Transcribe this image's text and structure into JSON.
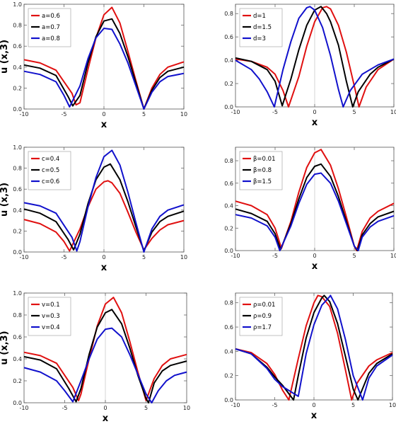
{
  "chart_data": [
    {
      "type": "line",
      "xlabel": "x",
      "ylabel": "u (x,3)",
      "xlim": [
        -10,
        10
      ],
      "ylim": [
        0,
        1.0
      ],
      "xticks": [
        "-10",
        "-5",
        "0",
        "5",
        "10"
      ],
      "yticks": [
        "0.0",
        "0.2",
        "0.4",
        "0.6",
        "0.8",
        "1.0"
      ],
      "legend_position": "top-left",
      "series": [
        {
          "name": "a=0.6",
          "color": "#e01010",
          "x": [
            -10,
            -8,
            -6,
            -4,
            -3.5,
            -3,
            -2,
            -1,
            0,
            1,
            2,
            3,
            4,
            5,
            6,
            7,
            8,
            10
          ],
          "y": [
            0.47,
            0.44,
            0.37,
            0.15,
            0.04,
            0.06,
            0.38,
            0.68,
            0.9,
            0.97,
            0.82,
            0.55,
            0.27,
            0.0,
            0.2,
            0.33,
            0.4,
            0.45
          ]
        },
        {
          "name": "a=0.7",
          "color": "#000000",
          "x": [
            -10,
            -8,
            -6,
            -4.5,
            -3.9,
            -3,
            -2,
            -1,
            0,
            1,
            2,
            3,
            4,
            5,
            6,
            7,
            8,
            10
          ],
          "y": [
            0.42,
            0.39,
            0.32,
            0.12,
            0.03,
            0.13,
            0.44,
            0.69,
            0.84,
            0.86,
            0.72,
            0.5,
            0.25,
            0.0,
            0.18,
            0.3,
            0.36,
            0.4
          ]
        },
        {
          "name": "a=0.8",
          "color": "#1111cc",
          "x": [
            -10,
            -8,
            -6,
            -5,
            -4.3,
            -3,
            -2,
            -1,
            0,
            1,
            2,
            3,
            4,
            5,
            6,
            7,
            8,
            10
          ],
          "y": [
            0.36,
            0.33,
            0.26,
            0.13,
            0.02,
            0.22,
            0.48,
            0.68,
            0.77,
            0.76,
            0.62,
            0.44,
            0.22,
            0.0,
            0.16,
            0.26,
            0.31,
            0.34
          ]
        }
      ]
    },
    {
      "type": "line",
      "xlabel": "x",
      "ylabel": "",
      "xlim": [
        -10,
        10
      ],
      "ylim": [
        0,
        0.88
      ],
      "xticks": [
        "-10",
        "-5",
        "0",
        "5",
        "10"
      ],
      "yticks": [
        "0.0",
        "0.2",
        "0.4",
        "0.6",
        "0.8"
      ],
      "legend_position": "top-left",
      "series": [
        {
          "name": "d=1",
          "color": "#e01010",
          "x": [
            -10,
            -8,
            -6,
            -5,
            -4,
            -3.3,
            -2,
            -1,
            0,
            1,
            1.5,
            2,
            3,
            4,
            5,
            5.6,
            6.5,
            8,
            10
          ],
          "y": [
            0.41,
            0.39,
            0.34,
            0.28,
            0.14,
            0.0,
            0.26,
            0.52,
            0.73,
            0.85,
            0.86,
            0.84,
            0.7,
            0.47,
            0.18,
            0.0,
            0.17,
            0.32,
            0.41
          ]
        },
        {
          "name": "d=1.5",
          "color": "#000000",
          "x": [
            -10,
            -8,
            -6,
            -5,
            -4.1,
            -3,
            -2,
            -1,
            0,
            0.8,
            1.5,
            2,
            3,
            4,
            4.8,
            5.5,
            7,
            8,
            10
          ],
          "y": [
            0.42,
            0.39,
            0.32,
            0.22,
            0.01,
            0.24,
            0.49,
            0.7,
            0.83,
            0.86,
            0.8,
            0.73,
            0.53,
            0.22,
            0.0,
            0.13,
            0.28,
            0.34,
            0.41
          ]
        },
        {
          "name": "d=3",
          "color": "#1111cc",
          "x": [
            -10,
            -8,
            -7,
            -6,
            -5.1,
            -4,
            -3,
            -2,
            -1,
            -0.6,
            0,
            1,
            2,
            3,
            3.6,
            4.5,
            6,
            8,
            10
          ],
          "y": [
            0.4,
            0.32,
            0.24,
            0.13,
            0.0,
            0.32,
            0.56,
            0.76,
            0.85,
            0.86,
            0.83,
            0.68,
            0.44,
            0.15,
            0.0,
            0.14,
            0.28,
            0.36,
            0.41
          ]
        }
      ]
    },
    {
      "type": "line",
      "xlabel": "x",
      "ylabel": "u (x,3)",
      "xlim": [
        -10,
        10
      ],
      "ylim": [
        0,
        1.0
      ],
      "xticks": [
        "-10",
        "-5",
        "0",
        "5",
        "10"
      ],
      "yticks": [
        "0.0",
        "0.2",
        "0.4",
        "0.6",
        "0.8",
        "1.0"
      ],
      "legend_position": "top-left",
      "series": [
        {
          "name": "c=0.4",
          "color": "#e01010",
          "x": [
            -10,
            -8,
            -6,
            -5,
            -4.3,
            -3,
            -2,
            -1,
            0,
            0.5,
            1,
            2,
            3,
            4,
            5,
            6,
            7,
            8,
            10
          ],
          "y": [
            0.31,
            0.27,
            0.19,
            0.1,
            0.01,
            0.22,
            0.43,
            0.6,
            0.67,
            0.68,
            0.66,
            0.56,
            0.38,
            0.19,
            0.02,
            0.13,
            0.21,
            0.26,
            0.3
          ]
        },
        {
          "name": "c=0.5",
          "color": "#000000",
          "x": [
            -10,
            -8,
            -6,
            -4.5,
            -3.8,
            -3,
            -2,
            -1,
            0,
            0.8,
            2,
            3,
            4,
            5,
            6,
            7,
            8,
            10
          ],
          "y": [
            0.41,
            0.37,
            0.29,
            0.12,
            0.02,
            0.17,
            0.46,
            0.69,
            0.81,
            0.84,
            0.69,
            0.48,
            0.24,
            0.01,
            0.19,
            0.29,
            0.34,
            0.39
          ]
        },
        {
          "name": "c=0.6",
          "color": "#1111cc",
          "x": [
            -10,
            -8,
            -6,
            -4,
            -3.4,
            -3,
            -2,
            -1,
            0,
            1,
            2,
            3,
            4,
            5,
            6,
            7,
            8,
            10
          ],
          "y": [
            0.47,
            0.44,
            0.37,
            0.14,
            0.01,
            0.1,
            0.43,
            0.71,
            0.91,
            0.97,
            0.83,
            0.57,
            0.28,
            0.0,
            0.22,
            0.34,
            0.4,
            0.45
          ]
        }
      ]
    },
    {
      "type": "line",
      "xlabel": "x",
      "ylabel": "",
      "xlim": [
        -10,
        10
      ],
      "ylim": [
        0,
        0.92
      ],
      "xticks": [
        "-10",
        "-5",
        "0",
        "5",
        "10"
      ],
      "yticks": [
        "0.0",
        "0.2",
        "0.4",
        "0.6",
        "0.8"
      ],
      "legend_position": "top-left",
      "series": [
        {
          "name": "β=0.01",
          "color": "#e01010",
          "x": [
            -10,
            -8,
            -6,
            -5,
            -4.2,
            -3,
            -2,
            -1,
            0,
            0.8,
            2,
            3,
            4,
            5,
            5.3,
            6,
            7,
            8,
            10
          ],
          "y": [
            0.44,
            0.4,
            0.32,
            0.2,
            0.02,
            0.26,
            0.52,
            0.74,
            0.87,
            0.9,
            0.76,
            0.55,
            0.3,
            0.04,
            0.0,
            0.17,
            0.29,
            0.35,
            0.42
          ]
        },
        {
          "name": "β=0.8",
          "color": "#000000",
          "x": [
            -10,
            -8,
            -6,
            -5,
            -4.3,
            -3,
            -2,
            -1,
            0,
            0.8,
            2,
            3,
            4,
            5,
            5.4,
            6,
            7,
            8,
            10
          ],
          "y": [
            0.37,
            0.33,
            0.26,
            0.15,
            0.01,
            0.24,
            0.46,
            0.65,
            0.75,
            0.77,
            0.66,
            0.48,
            0.26,
            0.04,
            0.0,
            0.14,
            0.24,
            0.3,
            0.35
          ]
        },
        {
          "name": "β=1.5",
          "color": "#1111cc",
          "x": [
            -10,
            -8,
            -6,
            -5,
            -4.4,
            -3,
            -2,
            -1,
            0,
            0.8,
            2,
            3,
            4,
            5,
            5.5,
            6,
            7,
            8,
            10
          ],
          "y": [
            0.32,
            0.29,
            0.22,
            0.12,
            0.0,
            0.22,
            0.42,
            0.59,
            0.68,
            0.69,
            0.6,
            0.44,
            0.24,
            0.04,
            0.0,
            0.12,
            0.21,
            0.26,
            0.31
          ]
        }
      ]
    },
    {
      "type": "line",
      "xlabel": "x",
      "ylabel": "u (x,3)",
      "xlim": [
        -10,
        10
      ],
      "ylim": [
        0,
        1.0
      ],
      "xticks": [
        "-10",
        "-5",
        "0",
        "5",
        "10"
      ],
      "yticks": [
        "0.0",
        "0.2",
        "0.4",
        "0.6",
        "0.8",
        "1.0"
      ],
      "legend_position": "top-left",
      "series": [
        {
          "name": "v=0.1",
          "color": "#e01010",
          "x": [
            -10,
            -8,
            -6,
            -4,
            -3.3,
            -3,
            -2,
            -1,
            0,
            1,
            2,
            3,
            4,
            5,
            6,
            7,
            8,
            10
          ],
          "y": [
            0.46,
            0.43,
            0.36,
            0.14,
            0.02,
            0.08,
            0.4,
            0.7,
            0.9,
            0.96,
            0.82,
            0.56,
            0.28,
            0.02,
            0.22,
            0.34,
            0.4,
            0.44
          ]
        },
        {
          "name": "v=0.3",
          "color": "#000000",
          "x": [
            -10,
            -8,
            -6,
            -4.5,
            -3.6,
            -3,
            -2,
            -1,
            0,
            0.8,
            2,
            3,
            4,
            5,
            5.3,
            6,
            7,
            8,
            10
          ],
          "y": [
            0.42,
            0.39,
            0.31,
            0.13,
            0.01,
            0.13,
            0.44,
            0.69,
            0.82,
            0.85,
            0.72,
            0.5,
            0.25,
            0.04,
            0.0,
            0.18,
            0.29,
            0.34,
            0.38
          ]
        },
        {
          "name": "v=0.4",
          "color": "#1111cc",
          "x": [
            -10,
            -8,
            -6,
            -5,
            -4,
            -3,
            -2,
            -1,
            0,
            0.8,
            2,
            3,
            4,
            5,
            5.7,
            6.5,
            7.5,
            8.5,
            10
          ],
          "y": [
            0.32,
            0.28,
            0.2,
            0.11,
            0.01,
            0.2,
            0.4,
            0.58,
            0.67,
            0.68,
            0.6,
            0.44,
            0.26,
            0.08,
            0.0,
            0.11,
            0.2,
            0.25,
            0.28
          ]
        }
      ]
    },
    {
      "type": "line",
      "xlabel": "x",
      "ylabel": "",
      "xlim": [
        -10,
        10
      ],
      "ylim": [
        0,
        0.88
      ],
      "xticks": [
        "-10",
        "-5",
        "0",
        "5",
        "10"
      ],
      "yticks": [
        "0.0",
        "0.2",
        "0.4",
        "0.6",
        "0.8"
      ],
      "legend_position": "top-left",
      "series": [
        {
          "name": "ρ=0.01",
          "color": "#e01010",
          "x": [
            -10,
            -8,
            -6,
            -5,
            -4,
            -3.2,
            -2,
            -1,
            0,
            0.5,
            1,
            2,
            3,
            4,
            4.8,
            5.5,
            7,
            8,
            10
          ],
          "y": [
            0.42,
            0.39,
            0.3,
            0.21,
            0.08,
            0.0,
            0.34,
            0.61,
            0.8,
            0.86,
            0.85,
            0.77,
            0.55,
            0.25,
            0.0,
            0.14,
            0.28,
            0.33,
            0.39
          ]
        },
        {
          "name": "ρ=0.9",
          "color": "#000000",
          "x": [
            -10,
            -8,
            -6,
            -5,
            -4,
            -2.6,
            -2,
            -1,
            0,
            1,
            1.3,
            2,
            3,
            4,
            5,
            5.6,
            7,
            8,
            10
          ],
          "y": [
            0.42,
            0.38,
            0.27,
            0.19,
            0.12,
            0.0,
            0.2,
            0.51,
            0.72,
            0.84,
            0.86,
            0.81,
            0.63,
            0.36,
            0.09,
            0.0,
            0.22,
            0.3,
            0.38
          ]
        },
        {
          "name": "ρ=1.7",
          "color": "#1111cc",
          "x": [
            -10,
            -8,
            -6,
            -5,
            -4,
            -2,
            -1,
            0,
            1,
            2,
            2.1,
            3,
            4,
            5,
            6.2,
            7,
            8,
            10
          ],
          "y": [
            0.42,
            0.38,
            0.26,
            0.17,
            0.11,
            0.03,
            0.38,
            0.62,
            0.78,
            0.85,
            0.86,
            0.75,
            0.5,
            0.2,
            0.0,
            0.18,
            0.28,
            0.37
          ]
        }
      ]
    }
  ]
}
